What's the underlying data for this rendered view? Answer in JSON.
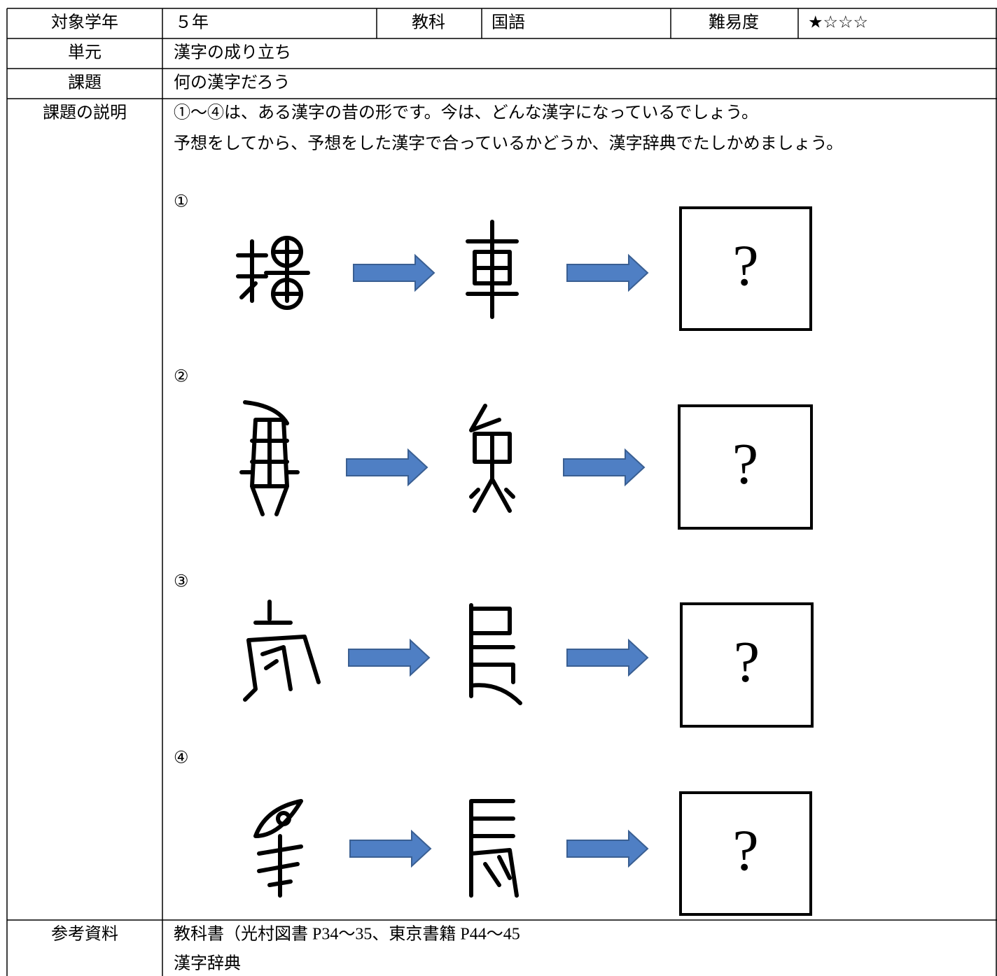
{
  "header": {
    "grade_label": "対象学年",
    "grade": "５年",
    "subject_label": "教科",
    "subject": "国語",
    "difficulty_label": "難易度",
    "difficulty": "★☆☆☆"
  },
  "unit": {
    "label": "単元",
    "value": "漢字の成り立ち"
  },
  "task": {
    "label": "課題",
    "value": "何の漢字だろう"
  },
  "explanation": {
    "label": "課題の説明",
    "lines": [
      "①～④は、ある漢字の昔の形です。今は、どんな漢字になっているでしょう。",
      "予想をしてから、予想をした漢字で合っているかどうか、漢字辞典でたしかめましょう。"
    ],
    "items": [
      {
        "number": "①",
        "answer": "?"
      },
      {
        "number": "②",
        "answer": "?"
      },
      {
        "number": "③",
        "answer": "?"
      },
      {
        "number": "④",
        "answer": "?"
      }
    ]
  },
  "references": {
    "label": "参考資料",
    "lines": [
      "教科書（光村図書 P34～35、東京書籍 P44～45",
      "漢字辞典"
    ]
  }
}
